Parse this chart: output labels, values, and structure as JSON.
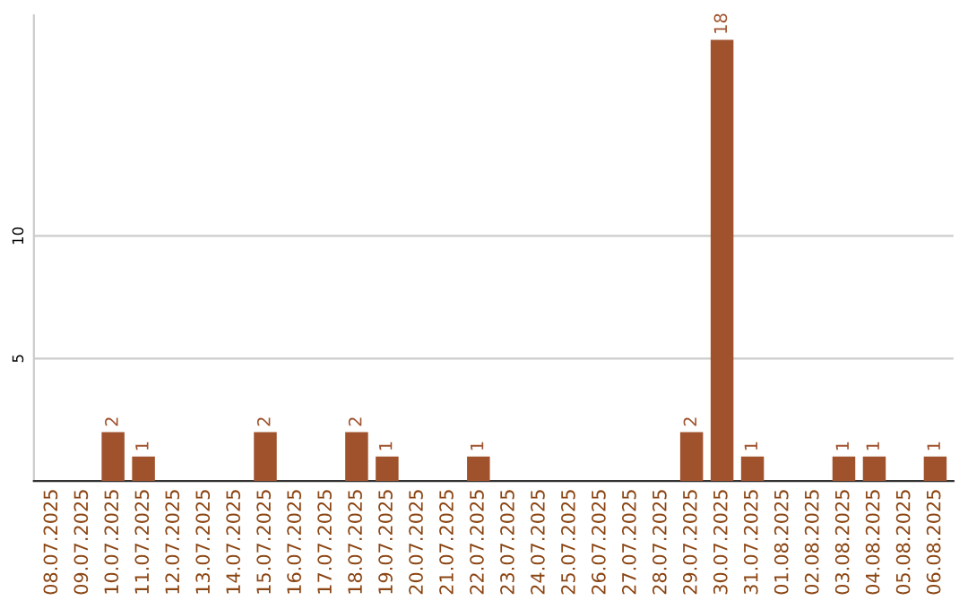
{
  "chart_data": {
    "type": "bar",
    "categories": [
      "08.07.2025",
      "09.07.2025",
      "10.07.2025",
      "11.07.2025",
      "12.07.2025",
      "13.07.2025",
      "14.07.2025",
      "15.07.2025",
      "16.07.2025",
      "17.07.2025",
      "18.07.2025",
      "19.07.2025",
      "20.07.2025",
      "21.07.2025",
      "22.07.2025",
      "23.07.2025",
      "24.07.2025",
      "25.07.2025",
      "26.07.2025",
      "27.07.2025",
      "28.07.2025",
      "29.07.2025",
      "30.07.2025",
      "31.07.2025",
      "01.08.2025",
      "02.08.2025",
      "03.08.2025",
      "04.08.2025",
      "05.08.2025",
      "06.08.2025"
    ],
    "values": [
      0,
      0,
      2,
      1,
      0,
      0,
      0,
      2,
      0,
      0,
      2,
      1,
      0,
      0,
      1,
      0,
      0,
      0,
      0,
      0,
      0,
      2,
      18,
      1,
      0,
      0,
      1,
      1,
      0,
      1
    ],
    "value_labels": [
      null,
      null,
      "2",
      "1",
      null,
      null,
      null,
      "2",
      null,
      null,
      "2",
      "1",
      null,
      null,
      "1",
      null,
      null,
      null,
      null,
      null,
      null,
      "2",
      "18",
      "1",
      null,
      null,
      "1",
      "1",
      null,
      "1"
    ],
    "color": "#a0522d",
    "ylim": [
      0,
      19
    ],
    "yticks": [
      5,
      10
    ],
    "grid": "y"
  }
}
